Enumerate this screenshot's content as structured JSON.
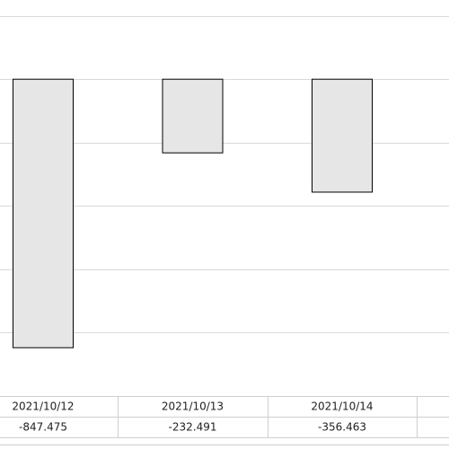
{
  "chart_data": {
    "type": "bar",
    "categories": [
      "2021/10/12",
      "2021/10/13",
      "2021/10/14",
      null
    ],
    "values": [
      -847.475,
      -232.491,
      -356.463,
      null
    ],
    "color": "#e6e6e6",
    "ylim": [
      -1000,
      250
    ],
    "yticks": [
      -800,
      -600,
      -400,
      -200,
      0,
      200
    ],
    "grid": true
  }
}
